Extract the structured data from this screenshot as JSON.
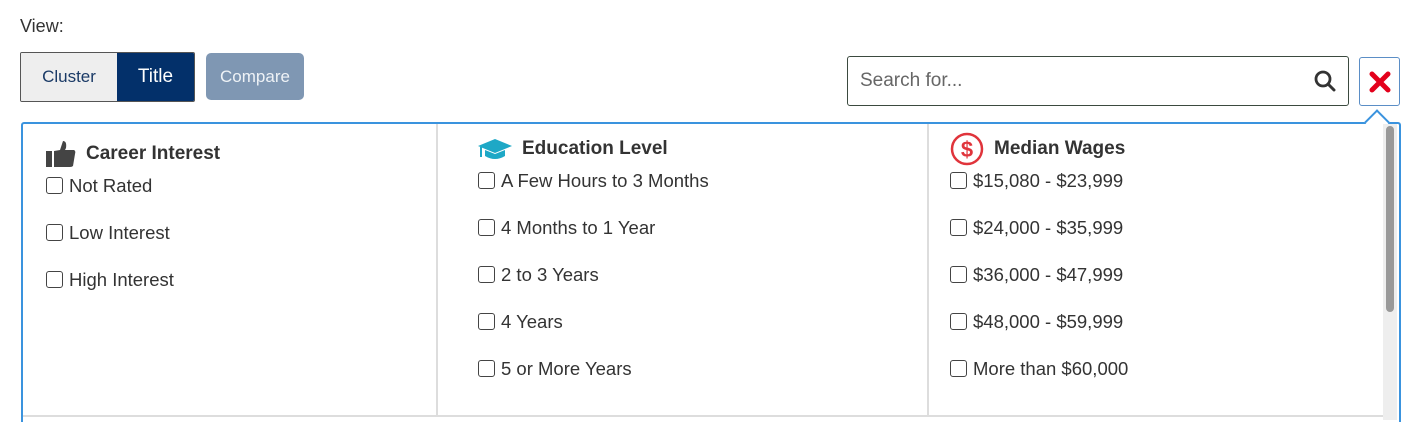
{
  "view_label": "View:",
  "view_toggle": {
    "cluster": "Cluster",
    "title": "Title",
    "selected": "Title"
  },
  "compare_label": "Compare",
  "search": {
    "placeholder": "Search for...",
    "value": ""
  },
  "colors": {
    "accent": "#03306a",
    "panel_border": "#3a93de",
    "close": "#e3001b",
    "education_icon": "#1ea8c6",
    "wages_icon": "#e0343b"
  },
  "filters": [
    {
      "title": "Career Interest",
      "icon": "thumbs-up-icon",
      "options": [
        "Not Rated",
        "Low Interest",
        "High Interest"
      ]
    },
    {
      "title": "Education Level",
      "icon": "graduation-cap-icon",
      "options": [
        "A Few Hours to 3 Months",
        "4 Months to 1 Year",
        "2 to 3 Years",
        "4 Years",
        "5 or More Years"
      ]
    },
    {
      "title": "Median Wages",
      "icon": "dollar-circle-icon",
      "options": [
        "$15,080 - $23,999",
        "$24,000 - $35,999",
        "$36,000 - $47,999",
        "$48,000 - $59,999",
        "More than $60,000"
      ]
    }
  ]
}
